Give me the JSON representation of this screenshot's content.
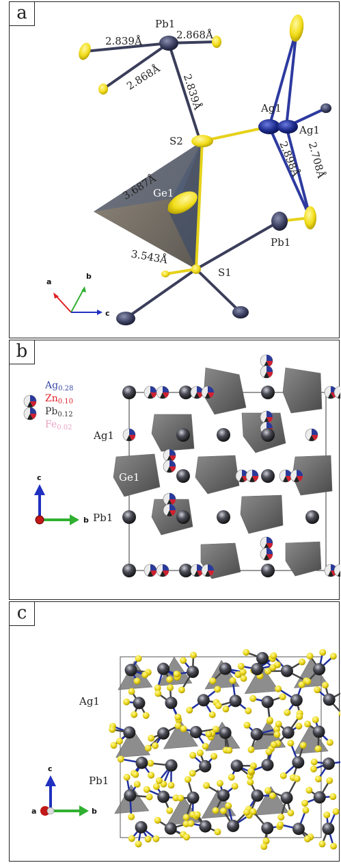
{
  "panels": {
    "a": {
      "tag": "a",
      "atom_labels": {
        "pb1_top": "Pb1",
        "ag1_a": "Ag1",
        "ag1_b": "Ag1",
        "s2": "S2",
        "ge1": "Ge1",
        "pb1_mid": "Pb1",
        "s1": "S1"
      },
      "bond_labels": {
        "b1": "2.839Å",
        "b2": "2.868Å",
        "b3": "2.868Å",
        "b4": "2.839Å",
        "b5": "3.687Å",
        "b6": "2.898Å",
        "b7": "2.708Å",
        "b8": "3.543Å"
      },
      "axes": {
        "a": "a",
        "b": "b",
        "c": "c"
      }
    },
    "b": {
      "tag": "b",
      "legend": [
        {
          "text": "Ag",
          "sub": "0.28",
          "color": "#3a4aa8"
        },
        {
          "text": "Zn",
          "sub": "0.10",
          "color": "#e0202a"
        },
        {
          "text": "Pb",
          "sub": "0.12",
          "color": "#333333"
        },
        {
          "text": "Fe",
          "sub": "0.02",
          "color": "#e8a0c0"
        }
      ],
      "site_labels": {
        "ag1": "Ag1",
        "ge1": "Ge1",
        "pb1": "Pb1"
      },
      "axes": {
        "c": "c",
        "b": "b"
      }
    },
    "c": {
      "tag": "c",
      "site_labels": {
        "ag1": "Ag1",
        "pb1": "Pb1"
      },
      "axes": {
        "c": "c",
        "a": "a",
        "b": "b"
      }
    }
  }
}
